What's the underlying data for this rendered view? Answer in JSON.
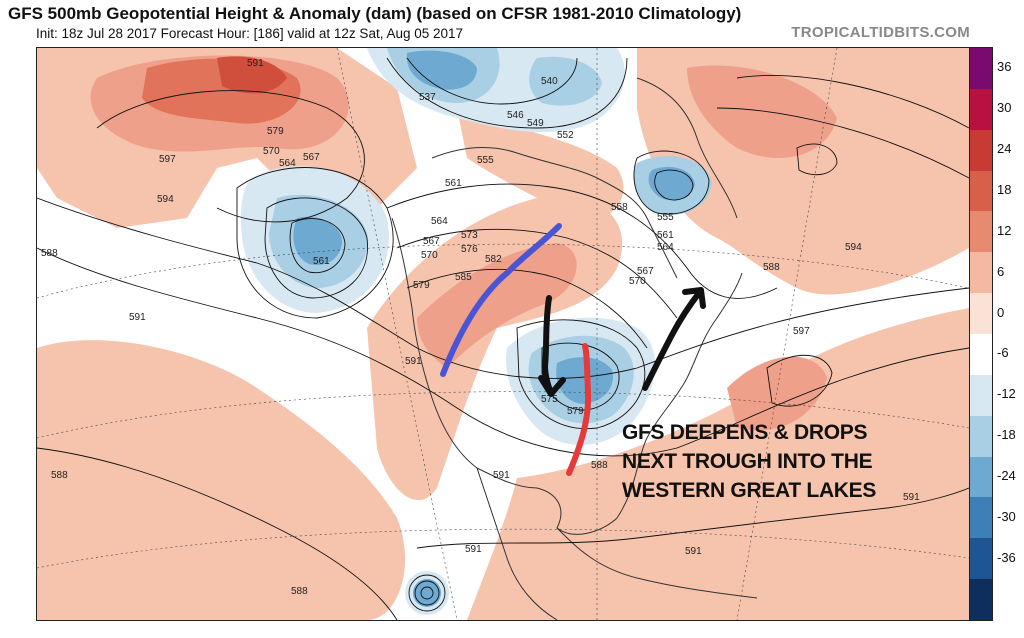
{
  "title": "GFS 500mb Geopotential Height & Anomaly (dam) (based on CFSR 1981-2010 Climatology)",
  "subtitle": "Init: 18z Jul 28 2017   Forecast Hour: [186]   valid at 12z Sat, Aug 05 2017",
  "credit": "TROPICALTIDBITS.COM",
  "annotation": {
    "line1": "GFS DEEPENS & DROPS",
    "line2": "NEXT TROUGH INTO THE",
    "line3": "WESTERN GREAT LAKES"
  },
  "colorbar": {
    "ticks": [
      "36",
      "30",
      "24",
      "18",
      "12",
      "6",
      "0",
      "-6",
      "-12",
      "-18",
      "-24",
      "-30",
      "-36"
    ],
    "colors": [
      "#7b0a6e",
      "#b8103f",
      "#c83a34",
      "#d8604a",
      "#e88a70",
      "#f4b9a0",
      "#fbe2d6",
      "#ffffff",
      "#d7e8f2",
      "#a9cfe4",
      "#6ea9d1",
      "#3f7fb8",
      "#1f5592",
      "#0e2e5e"
    ]
  },
  "contour_labels": [
    "591",
    "537",
    "540",
    "546",
    "549",
    "552",
    "555",
    "558",
    "561",
    "564",
    "567",
    "570",
    "573",
    "576",
    "579",
    "582",
    "585",
    "588",
    "594",
    "597",
    "575"
  ]
}
